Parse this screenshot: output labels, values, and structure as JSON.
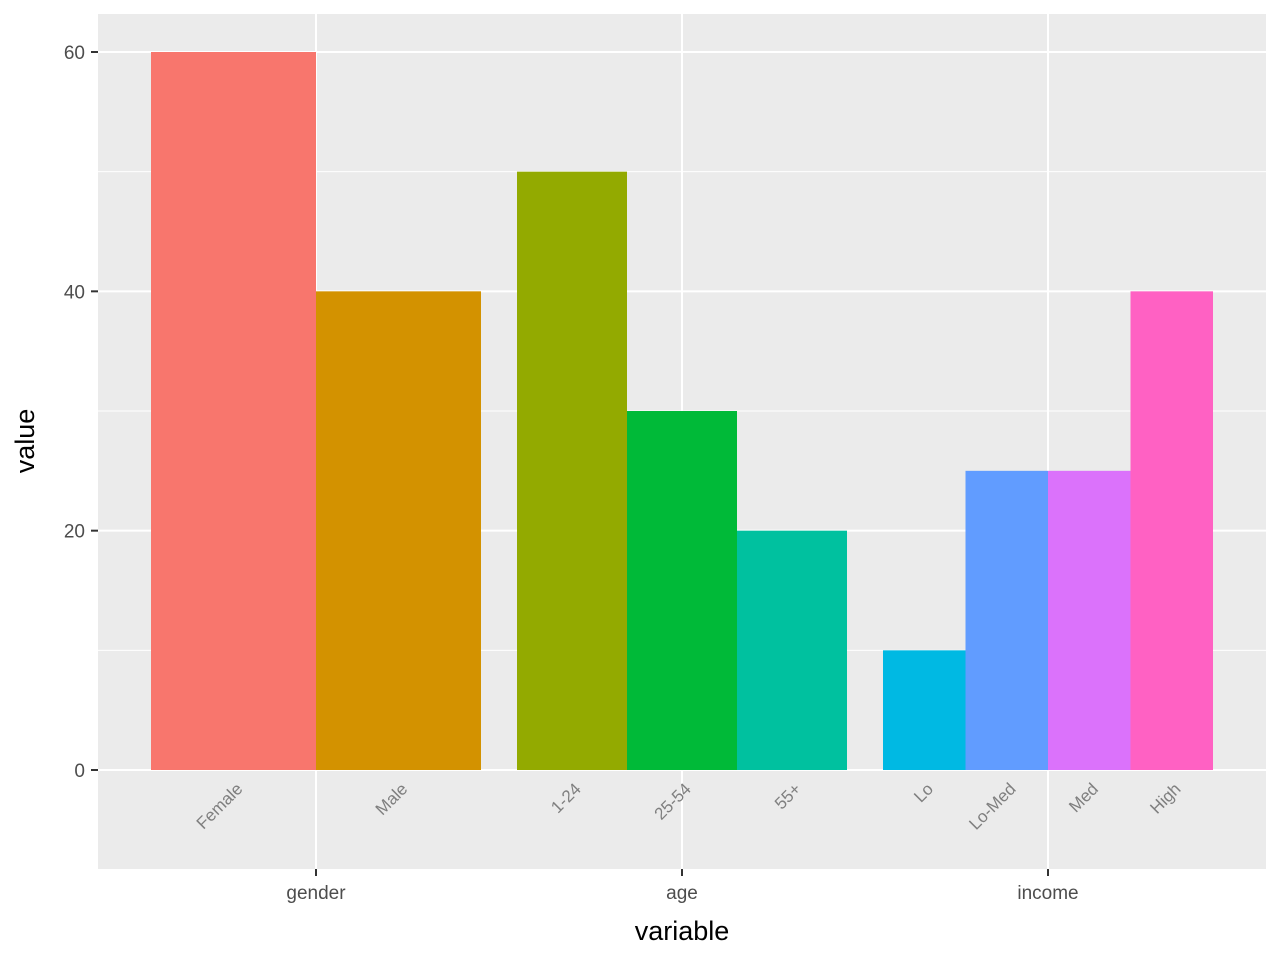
{
  "chart_data": {
    "type": "bar",
    "xlabel": "variable",
    "ylabel": "value",
    "ylim": [
      -8.3,
      65.5
    ],
    "yticks": [
      0,
      20,
      40,
      60
    ],
    "ytick_labels": [
      "0",
      "20",
      "40",
      "60"
    ],
    "grid": true,
    "legend": "none",
    "groups": [
      {
        "name": "gender",
        "bars": [
          {
            "label": "Female",
            "value": 60,
            "color": "#F8766D"
          },
          {
            "label": "Male",
            "value": 40,
            "color": "#D39200"
          }
        ]
      },
      {
        "name": "age",
        "bars": [
          {
            "label": "1-24",
            "value": 50,
            "color": "#93AA00"
          },
          {
            "label": "25-54",
            "value": 30,
            "color": "#00BA38"
          },
          {
            "label": "55+",
            "value": 20,
            "color": "#00C19F"
          }
        ]
      },
      {
        "name": "income",
        "bars": [
          {
            "label": "Lo",
            "value": 10,
            "color": "#00B9E3"
          },
          {
            "label": "Lo-Med",
            "value": 25,
            "color": "#619CFF"
          },
          {
            "label": "Med",
            "value": 25,
            "color": "#DB72FB"
          },
          {
            "label": "High",
            "value": 40,
            "color": "#FF61C3"
          }
        ]
      }
    ]
  }
}
